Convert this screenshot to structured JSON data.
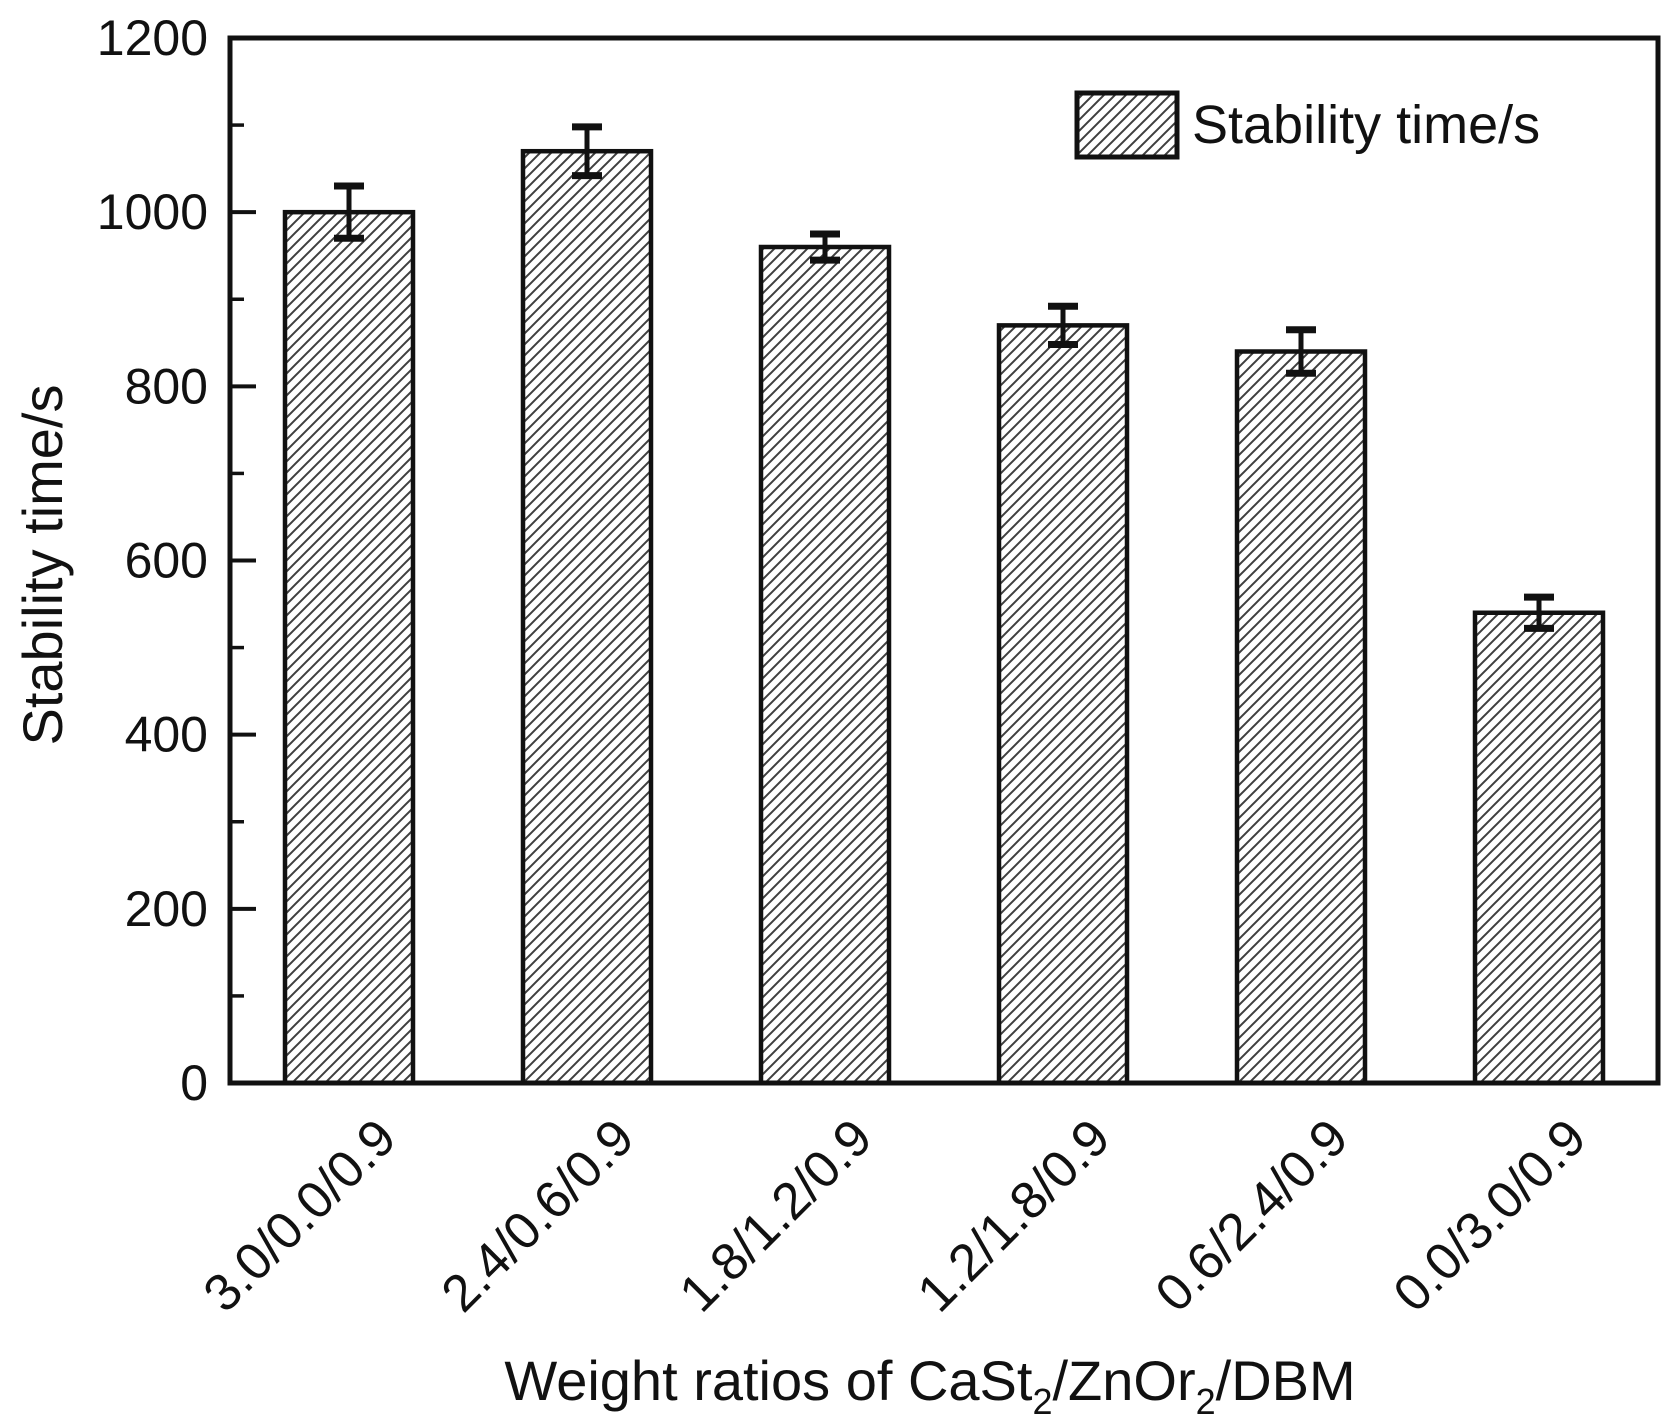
{
  "figure": {
    "background": "#ffffff"
  },
  "chart_data": {
    "type": "bar",
    "title": "",
    "categories": [
      "3.0/0.0/0.9",
      "2.4/0.6/0.9",
      "1.8/1.2/0.9",
      "1.2/1.8/0.9",
      "0.6/2.4/0.9",
      "0.0/3.0/0.9"
    ],
    "values": [
      1000,
      1070,
      960,
      870,
      840,
      540
    ],
    "errors": [
      30,
      28,
      15,
      22,
      25,
      18
    ],
    "series_name": "Stability time/s",
    "legend_label": "Stability time/s",
    "legend_position": "top-right",
    "ylabel": "Stability time/s",
    "xlabel_plain": "Weight ratios of CaSt2/ZnOr2/DBM",
    "xlabel_parts": [
      {
        "text": "Weight ratios of CaSt",
        "subscript": false
      },
      {
        "text": "2",
        "subscript": true
      },
      {
        "text": "/ZnOr",
        "subscript": false
      },
      {
        "text": "2",
        "subscript": true
      },
      {
        "text": "/DBM",
        "subscript": false
      }
    ],
    "ylim": [
      0,
      1200
    ],
    "yticks_major": [
      0,
      200,
      400,
      600,
      800,
      1000,
      1200
    ],
    "yticks_minor": [
      100,
      300,
      500,
      700,
      900,
      1100
    ],
    "grid": false,
    "bar_style": {
      "fill": "#ffffff",
      "hatch": "diagonal-forward",
      "hatch_color": "#3f3f3f",
      "outline": "#111111"
    },
    "axis_color": "#111111",
    "text_color": "#111111"
  }
}
